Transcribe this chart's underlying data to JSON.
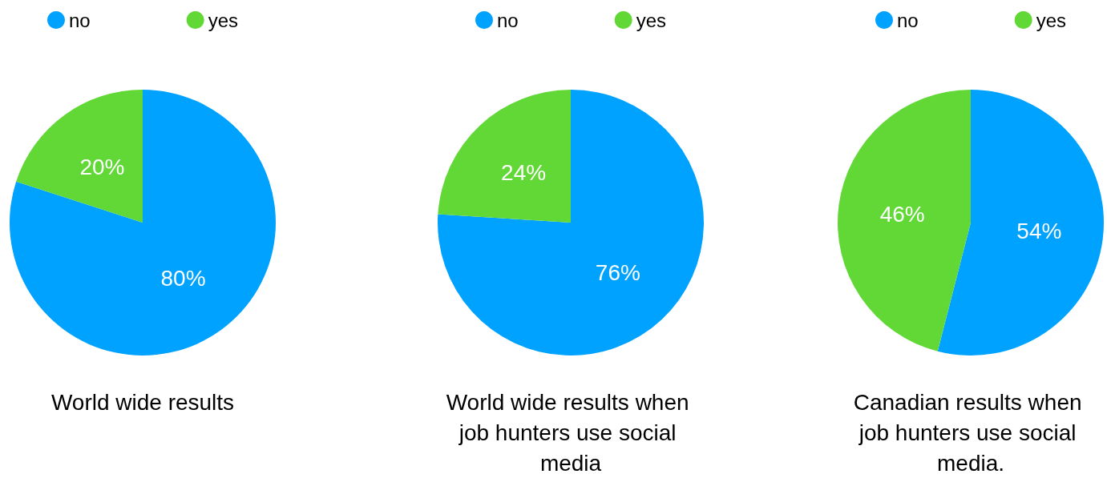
{
  "chart_data": [
    {
      "type": "pie",
      "title": "World wide results",
      "categories": [
        "no",
        "yes"
      ],
      "values": [
        80,
        20
      ],
      "value_labels": [
        "80%",
        "20%"
      ],
      "colors": [
        "#00a2ff",
        "#61d836"
      ],
      "legend": "top",
      "marker": "circle"
    },
    {
      "type": "pie",
      "title": "World wide results when job hunters use social media",
      "categories": [
        "no",
        "yes"
      ],
      "values": [
        76,
        24
      ],
      "value_labels": [
        "76%",
        "24%"
      ],
      "colors": [
        "#00a2ff",
        "#61d836"
      ],
      "legend": "top",
      "marker": "circle"
    },
    {
      "type": "pie",
      "title": "Canadian results when job hunters use social media.",
      "categories": [
        "no",
        "yes"
      ],
      "values": [
        54,
        46
      ],
      "value_labels": [
        "54%",
        "46%"
      ],
      "colors": [
        "#00a2ff",
        "#61d836"
      ],
      "legend": "top",
      "marker": "circle"
    }
  ]
}
